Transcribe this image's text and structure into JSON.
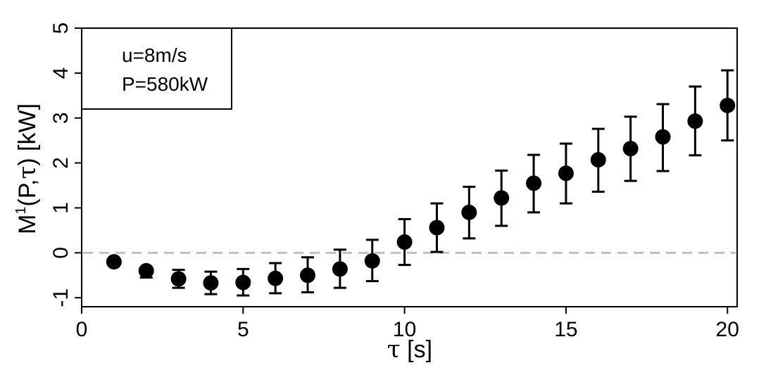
{
  "chart_data": {
    "type": "scatter",
    "xlabel": {
      "symbol": "τ",
      "unit": " [s]"
    },
    "ylabel": {
      "main": "M",
      "sup": "1",
      "rest": "(P,",
      "sym": "τ",
      "end": ") [kW]"
    },
    "xlim": [
      0,
      20.3
    ],
    "ylim": [
      -1.2,
      5
    ],
    "x_ticks": [
      0,
      5,
      10,
      15,
      20
    ],
    "y_ticks": [
      -1,
      0,
      1,
      2,
      3,
      4,
      5
    ],
    "reference_line": {
      "y": 0,
      "style": "dashed",
      "color": "#c0c0c0"
    },
    "legend": {
      "position": "top-left",
      "lines": [
        "u=8m/s",
        "P=580kW"
      ]
    },
    "series": [
      {
        "marker_color": "#000000",
        "x": [
          1,
          2,
          3,
          4,
          5,
          6,
          7,
          8,
          9,
          10,
          11,
          12,
          13,
          14,
          15,
          16,
          17,
          18,
          19,
          20
        ],
        "y": [
          -0.2,
          -0.4,
          -0.58,
          -0.67,
          -0.66,
          -0.57,
          -0.5,
          -0.36,
          -0.18,
          0.24,
          0.56,
          0.9,
          1.22,
          1.55,
          1.77,
          2.07,
          2.32,
          2.58,
          2.93,
          3.28
        ],
        "err_low": [
          -0.2,
          -0.55,
          -0.78,
          -0.92,
          -0.95,
          -0.9,
          -0.88,
          -0.78,
          -0.63,
          -0.27,
          0.02,
          0.32,
          0.6,
          0.9,
          1.1,
          1.36,
          1.6,
          1.82,
          2.17,
          2.5
        ],
        "err_high": [
          -0.2,
          -0.32,
          -0.38,
          -0.42,
          -0.36,
          -0.23,
          -0.1,
          0.07,
          0.29,
          0.75,
          1.1,
          1.47,
          1.83,
          2.18,
          2.43,
          2.76,
          3.03,
          3.31,
          3.7,
          4.06
        ]
      }
    ]
  }
}
